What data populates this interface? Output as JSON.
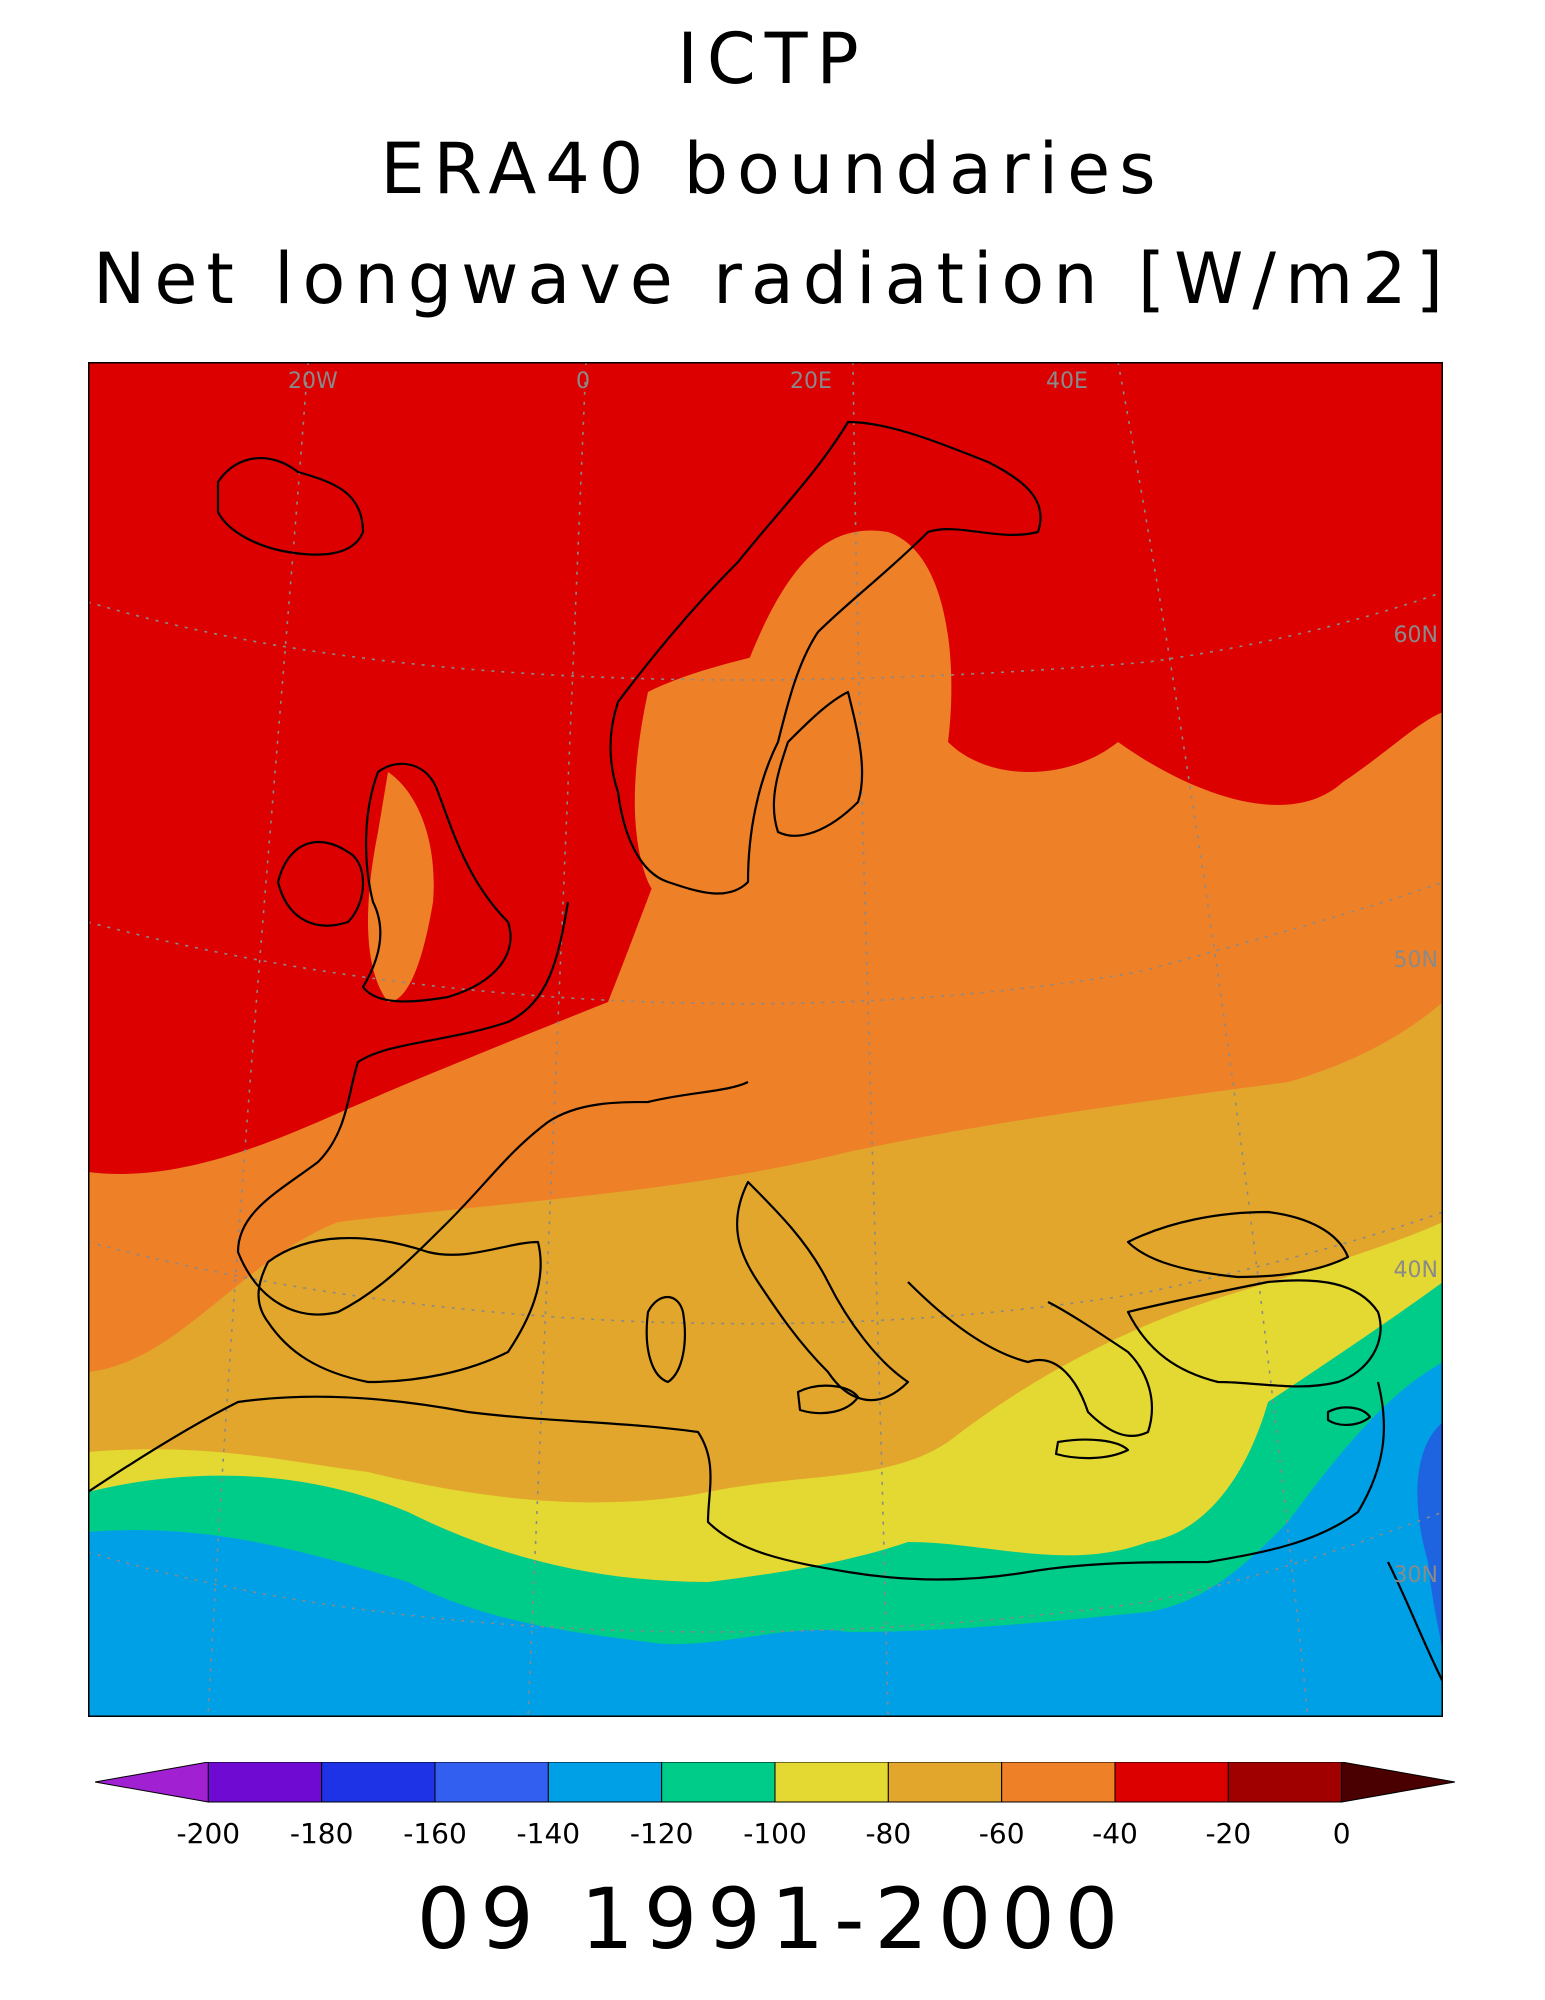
{
  "titles": {
    "line1": "ICTP",
    "line2": "ERA40 boundaries",
    "line3": "Net longwave radiation [W/m2]"
  },
  "map": {
    "longitude_labels": [
      "20W",
      "0",
      "20E",
      "40E"
    ],
    "latitude_labels": [
      "60N",
      "50N",
      "40N",
      "30N"
    ],
    "field_colors": {
      "red": "#dc0000",
      "orange": "#ee8028",
      "amber": "#e2a62c",
      "yellow": "#e4d832",
      "green": "#00cc8a",
      "light_blue": "#00a0e6",
      "blue": "#1e64e0"
    }
  },
  "colorbar": {
    "labels": [
      "-200",
      "-180",
      "-160",
      "-140",
      "-120",
      "-100",
      "-80",
      "-60",
      "-40",
      "-20",
      "0"
    ],
    "colors": [
      "#a020d2",
      "#6e0ad2",
      "#1e32e6",
      "#325ff0",
      "#00a0e6",
      "#00cc8a",
      "#e4d832",
      "#e2a62c",
      "#ee8028",
      "#dc0000",
      "#a00000",
      "#4a0000"
    ]
  },
  "period": "09 1991-2000"
}
